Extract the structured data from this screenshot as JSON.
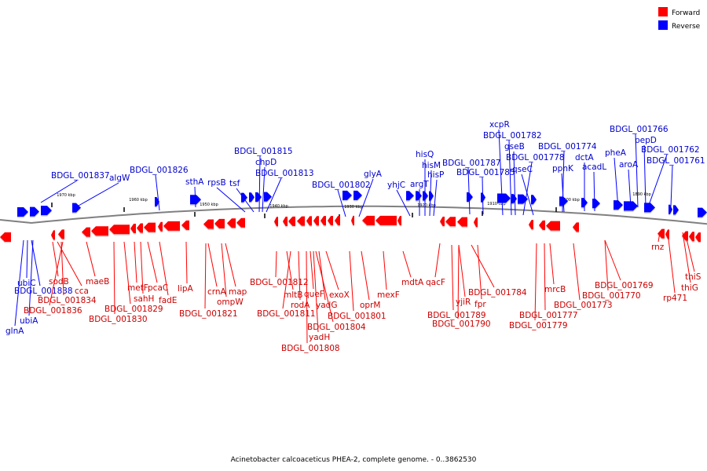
{
  "title": "Acinetobacter calcoaceticus PHEA-2, complete genome. - 0..3862530",
  "colors": {
    "forward": "#ff0000",
    "reverse": "#0000ff",
    "forward_label": "#cc0000",
    "reverse_label": "#0000cc",
    "backbone": "#808080"
  },
  "legend": [
    {
      "label": "Forward",
      "color": "#ff0000"
    },
    {
      "label": "Reverse",
      "color": "#0000ff"
    }
  ],
  "ticks": [
    {
      "label": "1970 kbp"
    },
    {
      "label": "1960 kbp"
    },
    {
      "label": "1950 kbp"
    },
    {
      "label": "1940 kbp"
    },
    {
      "label": "1930 kbp"
    },
    {
      "label": "1920 kbp"
    },
    {
      "label": "1910 kbp"
    },
    {
      "label": "1900 kbp"
    },
    {
      "label": "1890 kbp"
    }
  ],
  "reverse_genes": [
    {
      "label": "BDGL_001837"
    },
    {
      "label": "algW"
    },
    {
      "label": "BDGL_001826"
    },
    {
      "label": "sthA"
    },
    {
      "label": "rpsB"
    },
    {
      "label": "tsf"
    },
    {
      "label": "BDGL_001815"
    },
    {
      "label": "chpD"
    },
    {
      "label": "BDGL_001813"
    },
    {
      "label": "BDGL_001802"
    },
    {
      "label": "glyA"
    },
    {
      "label": "yhjC"
    },
    {
      "label": "argT"
    },
    {
      "label": "hisQ"
    },
    {
      "label": "hisM"
    },
    {
      "label": "hisP"
    },
    {
      "label": "BDGL_001787"
    },
    {
      "label": "BDGL_001785"
    },
    {
      "label": "xcpR"
    },
    {
      "label": "BDGL_001782"
    },
    {
      "label": "gseB"
    },
    {
      "label": "BDGL_001778"
    },
    {
      "label": "qseC"
    },
    {
      "label": "BDGL_001774"
    },
    {
      "label": "ppnK"
    },
    {
      "label": "dctA"
    },
    {
      "label": "acadL"
    },
    {
      "label": "pheA"
    },
    {
      "label": "aroA"
    },
    {
      "label": "BDGL_001766"
    },
    {
      "label": "pepD"
    },
    {
      "label": "BDGL_001762"
    },
    {
      "label": "BDGL_001761"
    },
    {
      "label": "ubiC"
    },
    {
      "label": "BDGL_001838"
    },
    {
      "label": "ubiA"
    },
    {
      "label": "glnA"
    }
  ],
  "forward_genes": [
    {
      "label": "sodB"
    },
    {
      "label": "cca"
    },
    {
      "label": "maeB"
    },
    {
      "label": "BDGL_001834"
    },
    {
      "label": "BDGL_001836"
    },
    {
      "label": "metF"
    },
    {
      "label": "sahH"
    },
    {
      "label": "pcaC"
    },
    {
      "label": "BDGL_001829"
    },
    {
      "label": "fadE"
    },
    {
      "label": "BDGL_001830"
    },
    {
      "label": "lipA"
    },
    {
      "label": "crnA"
    },
    {
      "label": "map"
    },
    {
      "label": "ompW"
    },
    {
      "label": "BDGL_001821"
    },
    {
      "label": "BDGL_001812"
    },
    {
      "label": "mltB"
    },
    {
      "label": "queF"
    },
    {
      "label": "rodA"
    },
    {
      "label": "exoX"
    },
    {
      "label": "yadG"
    },
    {
      "label": "BDGL_001811"
    },
    {
      "label": "BDGL_001801"
    },
    {
      "label": "oprM"
    },
    {
      "label": "BDGL_001804"
    },
    {
      "label": "yadH"
    },
    {
      "label": "BDGL_001808"
    },
    {
      "label": "mexF"
    },
    {
      "label": "mdtA"
    },
    {
      "label": "qacF"
    },
    {
      "label": "yjiR"
    },
    {
      "label": "fpr"
    },
    {
      "label": "BDGL_001784"
    },
    {
      "label": "BDGL_001789"
    },
    {
      "label": "BDGL_001790"
    },
    {
      "label": "mrcB"
    },
    {
      "label": "BDGL_001777"
    },
    {
      "label": "BDGL_001779"
    },
    {
      "label": "BDGL_001773"
    },
    {
      "label": "BDGL_001769"
    },
    {
      "label": "BDGL_001770"
    },
    {
      "label": "rnz"
    },
    {
      "label": "thiS"
    },
    {
      "label": "thiG"
    },
    {
      "label": "rp471"
    }
  ]
}
